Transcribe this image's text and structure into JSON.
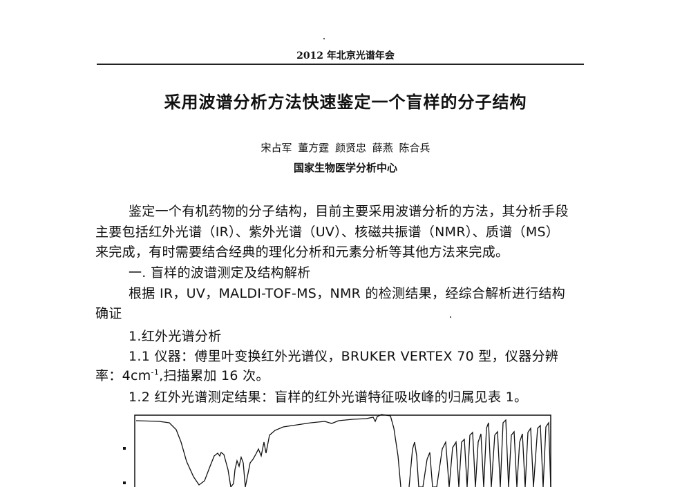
{
  "header": {
    "running_title": "2012 年北京光谱年会"
  },
  "title": "采用波谱分析方法快速鉴定一个盲样的分子结构",
  "authors": "宋占军 董方霆 颜贤忠 薛燕 陈合兵",
  "affiliation": "国家生物医学分析中心",
  "body": {
    "lines": [
      "鉴定一个有机药物的分子结构，目前主要采用波谱分析的方法，其分析手段",
      "主要包括红外光谱（IR）、紫外光谱（UV）、核磁共振谱（NMR）、质谱（MS）",
      "来完成，有时需要结合经典的理化分析和元素分析等其他方法来完成。",
      "一. 盲样的波谱测定及结构解析",
      "根据 IR，UV，MALDI-TOF-MS，NMR 的检测结果，经综合解析进行结构",
      "确证",
      "1.红外光谱分析",
      "1.1 仪器：傅里叶变换红外光谱仪，BRUKER VERTEX 70 型，仪器分辨",
      "率：4cm",
      "1.2 红外光谱测定结果：盲样的红外光谱特征吸收峰的归属见表 1。"
    ],
    "line9_sup": "-1",
    "line9_rest": ",扫描累加 16 次。"
  },
  "figure": {
    "type": "IR spectrum (image)"
  }
}
